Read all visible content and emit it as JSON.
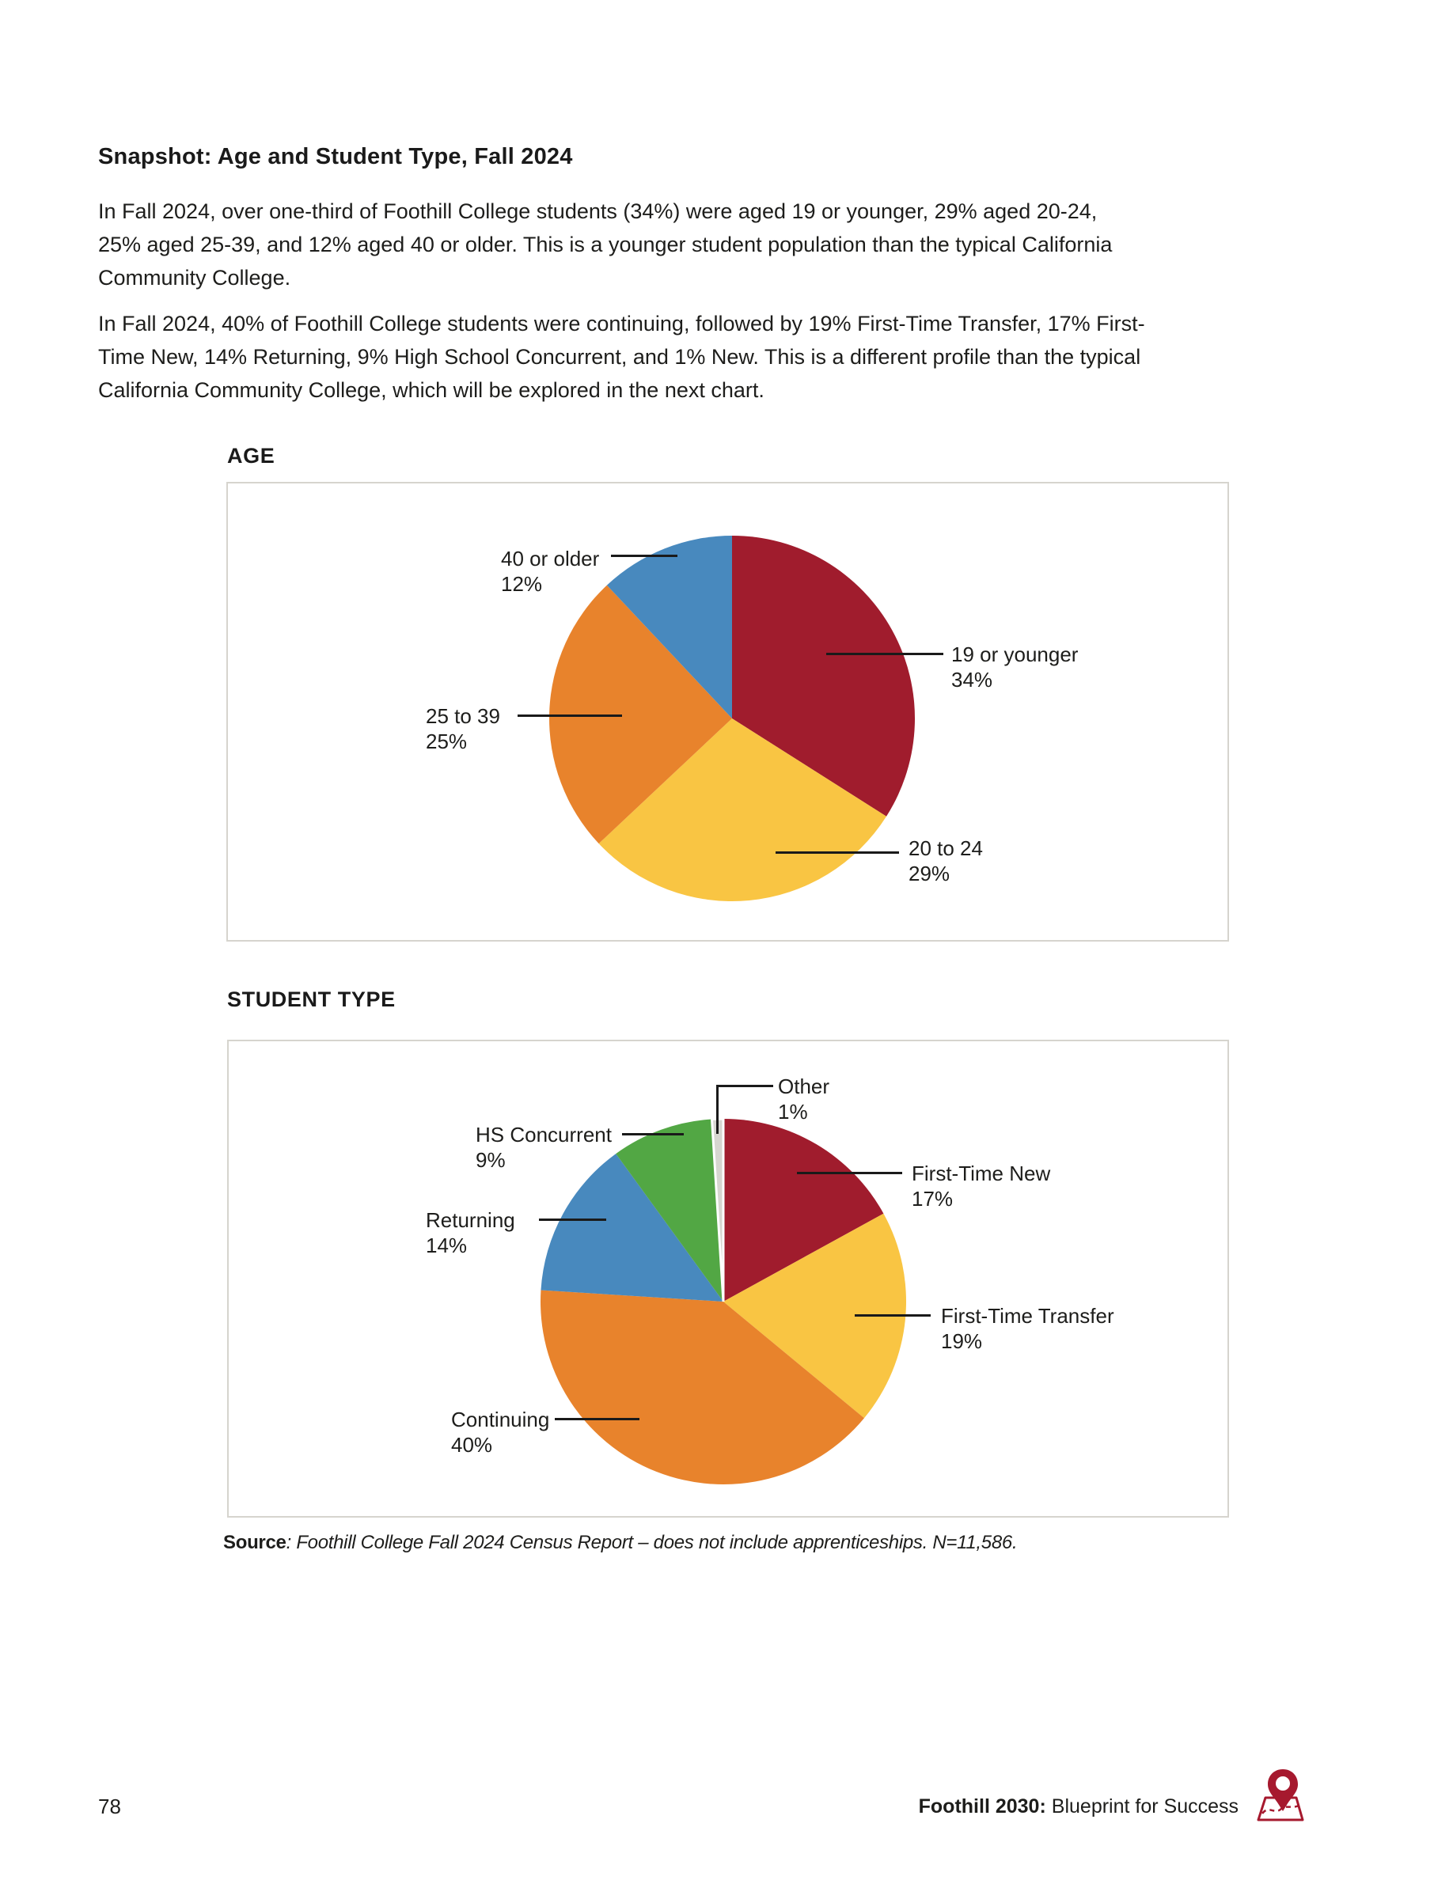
{
  "page_heading": "Snapshot: Age and Student Type, Fall 2024",
  "paragraphs": {
    "p1": "In Fall 2024, over one-third of Foothill College students (34%) were aged 19 or younger, 29% aged 20-24,\n25% aged 25-39, and 12% aged 40 or older. This is a younger student population than the typical California\nCommunity College.",
    "p2": "In Fall 2024, 40% of Foothill College students were continuing, followed by 19% First-Time Transfer, 17% First-\nTime New, 14% Returning, 9% High School Concurrent, and 1% New. This is a different profile than the typical\nCalifornia Community College, which will be explored in the next chart."
  },
  "sections": {
    "age_title": "AGE",
    "student_type_title": "STUDENT TYPE"
  },
  "source": {
    "label": "Source",
    "text": ": Foothill College Fall 2024 Census Report – does not include apprenticeships. N=11,586."
  },
  "footer": {
    "page_number": "78",
    "brand_bold": "Foothill 2030:",
    "brand_rest": "Blueprint for Success",
    "icon": "map-pin-map-icon",
    "icon_color": "#A6192E"
  },
  "colors": {
    "maroon": "#A01C2D",
    "yellow": "#F9C543",
    "orange": "#E8832C",
    "blue": "#4889BE",
    "green": "#52A744",
    "gray": "#D6D6D0",
    "frame_border": "#D6D4CE",
    "text": "#1D1D1B"
  },
  "chart_data": [
    {
      "type": "pie",
      "title": "AGE",
      "start_angle": "north",
      "direction": "clockwise",
      "legend_position": "callout-labels",
      "slices": [
        {
          "label": "19 or younger",
          "value": 34,
          "pct": "34%",
          "color": "#A01C2D"
        },
        {
          "label": "20 to 24",
          "value": 29,
          "pct": "29%",
          "color": "#F9C543"
        },
        {
          "label": "25 to 39",
          "value": 25,
          "pct": "25%",
          "color": "#E8832C"
        },
        {
          "label": "40 or older",
          "value": 12,
          "pct": "12%",
          "color": "#4889BE"
        }
      ]
    },
    {
      "type": "pie",
      "title": "STUDENT TYPE",
      "start_angle": "north",
      "direction": "clockwise",
      "legend_position": "callout-labels",
      "slices": [
        {
          "label": "First-Time New",
          "value": 17,
          "pct": "17%",
          "color": "#A01C2D"
        },
        {
          "label": "First-Time Transfer",
          "value": 19,
          "pct": "19%",
          "color": "#F9C543"
        },
        {
          "label": "Continuing",
          "value": 40,
          "pct": "40%",
          "color": "#E8832C"
        },
        {
          "label": "Returning",
          "value": 14,
          "pct": "14%",
          "color": "#4889BE"
        },
        {
          "label": "HS Concurrent",
          "value": 9,
          "pct": "9%",
          "color": "#52A744"
        },
        {
          "label": "Other",
          "value": 1,
          "pct": "1%",
          "color": "#D6D6D0",
          "outlined": true
        }
      ]
    }
  ]
}
